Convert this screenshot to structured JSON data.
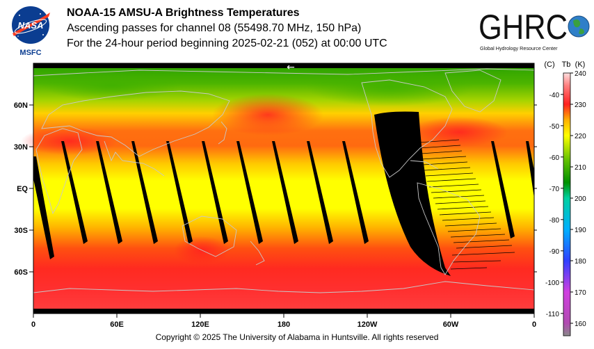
{
  "header": {
    "title": "NOAA-15 AMSU-A Brightness Temperatures",
    "subtitle1": "Ascending passes for channel 08 (55498.70 MHz, 150 hPa)",
    "subtitle2": "For the 24-hour period beginning 2025-02-21 (052) at 00:00 UTC"
  },
  "logos": {
    "nasa_text": "NASA",
    "nasa_caption": "MSFC",
    "ghrc_text": "GHRC",
    "ghrc_caption": "Global Hydrology Resource Center"
  },
  "map": {
    "lat_labels": [
      "60N",
      "30N",
      "EQ",
      "30S",
      "60S"
    ],
    "lon_labels": [
      "0",
      "60E",
      "120E",
      "180",
      "120W",
      "60W",
      "0"
    ],
    "arrow_glyph": "←",
    "colors": {
      "no_data": "#000000",
      "coastline": "#c8c8c8"
    }
  },
  "colorbar": {
    "header_c": "(C)",
    "header_tb": "Tb",
    "header_k": "(K)",
    "kelvin_ticks": [
      "240",
      "230",
      "220",
      "210",
      "200",
      "190",
      "180",
      "170",
      "160"
    ],
    "celsius_ticks": [
      "-40",
      "-50",
      "-60",
      "-70",
      "-80",
      "-90",
      "-100",
      "-110"
    ],
    "range_k": [
      156,
      240
    ],
    "stops": [
      {
        "k": 156,
        "color": "#8a8a8a"
      },
      {
        "k": 160,
        "color": "#b04bb0"
      },
      {
        "k": 170,
        "color": "#d040e0"
      },
      {
        "k": 180,
        "color": "#3040ff"
      },
      {
        "k": 190,
        "color": "#00b0ff"
      },
      {
        "k": 200,
        "color": "#00d0a0"
      },
      {
        "k": 205,
        "color": "#009000"
      },
      {
        "k": 212,
        "color": "#60c000"
      },
      {
        "k": 220,
        "color": "#ffff00"
      },
      {
        "k": 225,
        "color": "#ffb000"
      },
      {
        "k": 230,
        "color": "#ff2020"
      },
      {
        "k": 236,
        "color": "#ff8080"
      },
      {
        "k": 240,
        "color": "#ffe0e0"
      }
    ]
  },
  "footer": {
    "copyright": "Copyright © 2025 The University of Alabama in Huntsville.  All rights reserved"
  }
}
